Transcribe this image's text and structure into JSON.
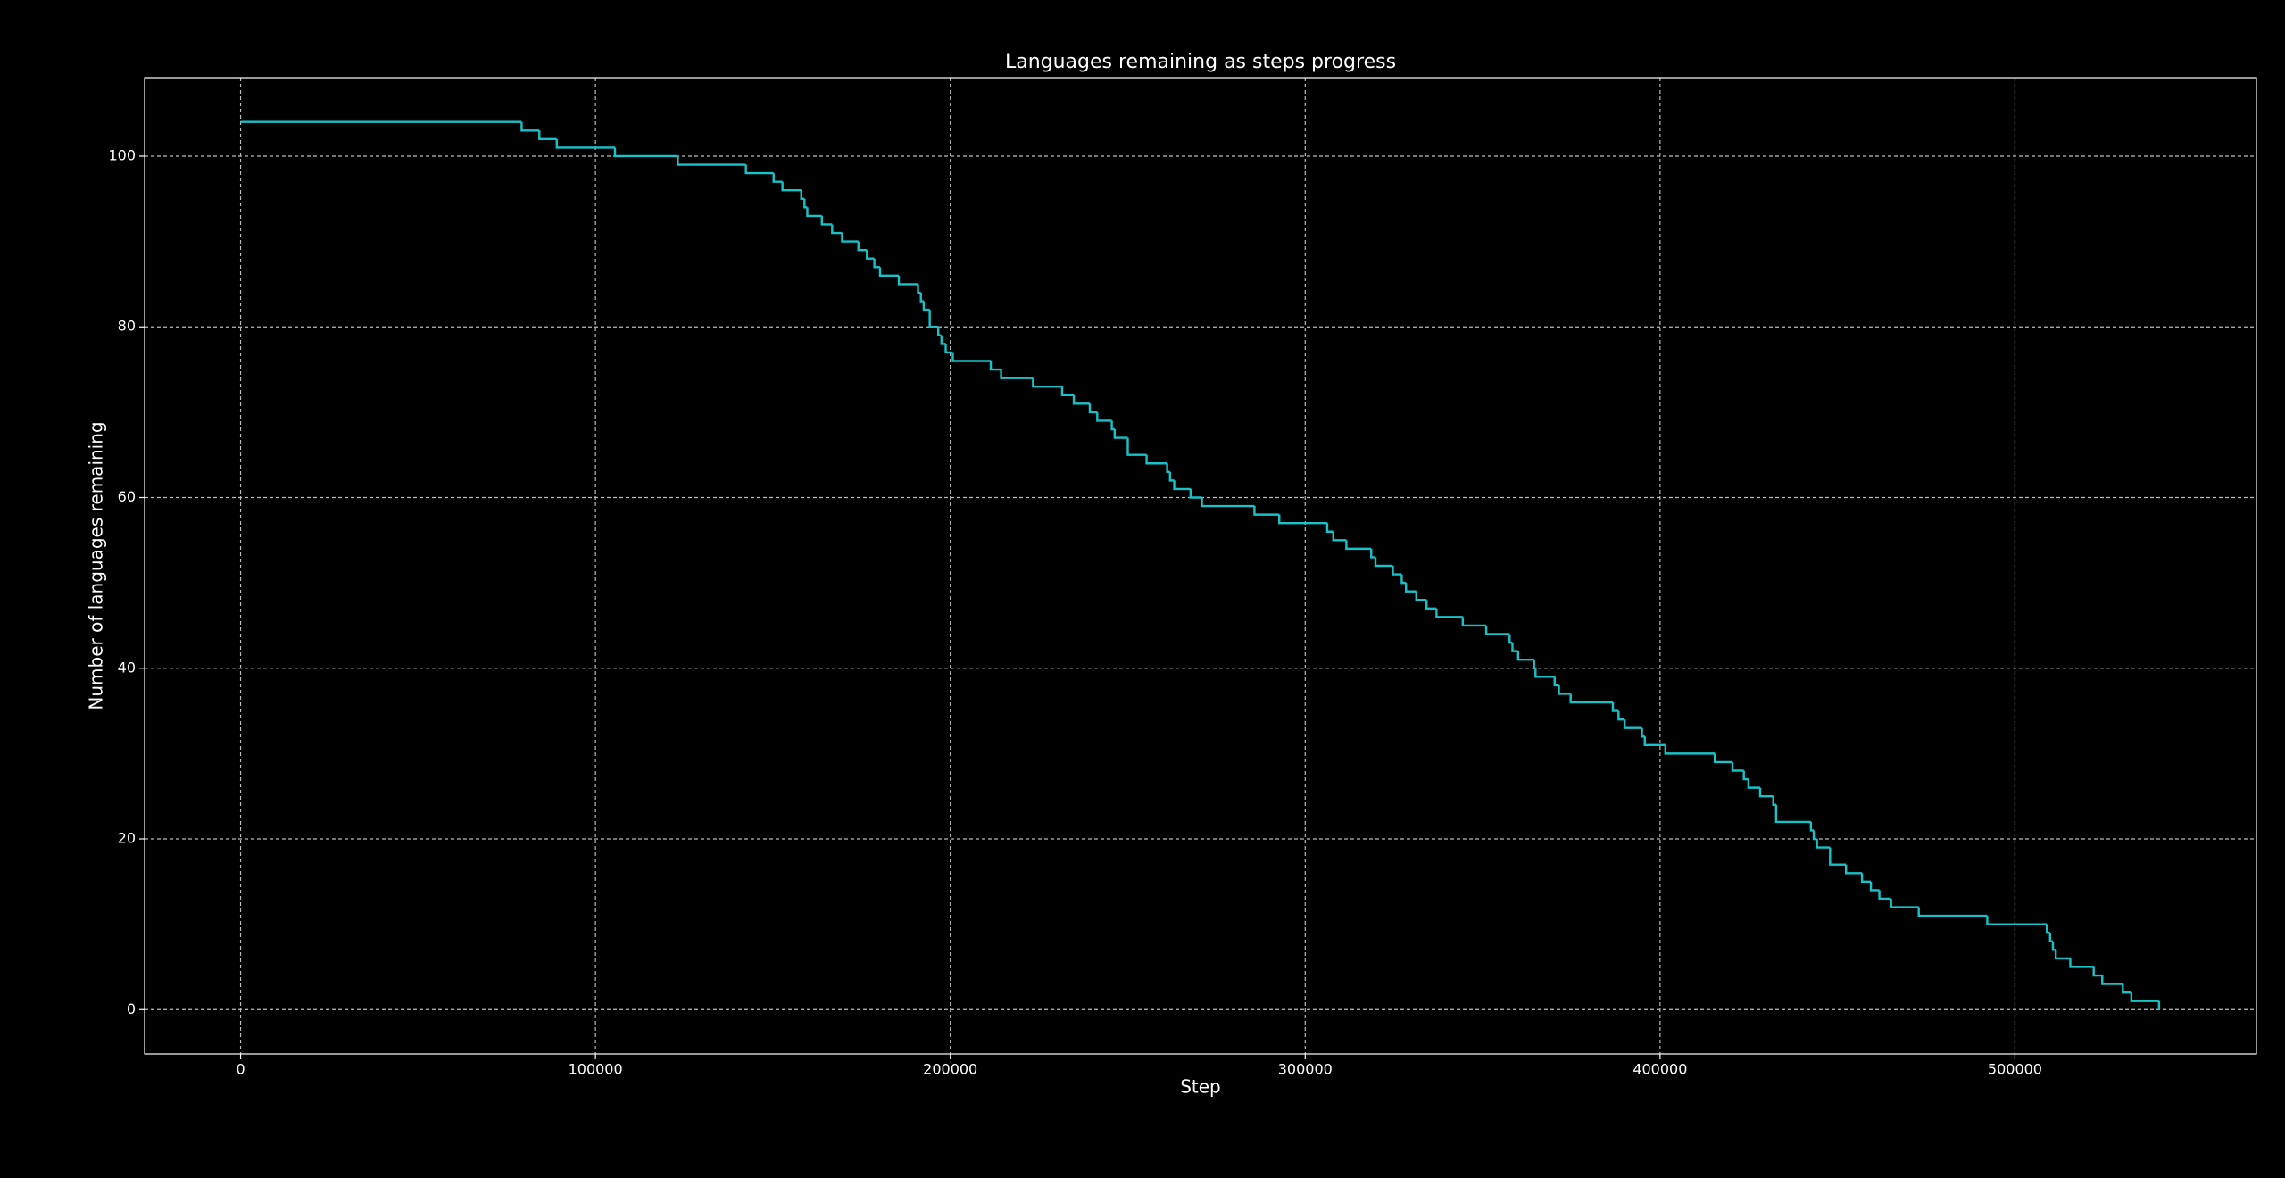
{
  "chart_data": {
    "type": "step",
    "title": "Languages remaining as steps progress",
    "x_label": "Step",
    "y_label": "Number of languages remaining",
    "xlim": [
      -27050,
      568050
    ],
    "ylim": [
      -5.2,
      109.2
    ],
    "xticks": [
      0,
      100000,
      200000,
      300000,
      400000,
      500000
    ],
    "yticks": [
      0,
      20,
      40,
      60,
      80,
      100
    ],
    "grid": true,
    "series": [
      {
        "color": "#17c3c9",
        "x": [
          0,
          79200,
          84200,
          89100,
          105500,
          123200,
          142400,
          150200,
          152700,
          158000,
          158900,
          159700,
          163800,
          166700,
          169500,
          174100,
          176500,
          178600,
          180200,
          185500,
          190900,
          191700,
          192500,
          194200,
          196600,
          197500,
          198700,
          200700,
          211400,
          214300,
          223300,
          231500,
          234800,
          239300,
          241400,
          245500,
          246300,
          250000,
          255300,
          261100,
          261900,
          263100,
          267700,
          270900,
          285700,
          292700,
          306200,
          307900,
          311600,
          318600,
          319800,
          324700,
          327200,
          328400,
          331300,
          334200,
          337000,
          344400,
          351000,
          357600,
          358400,
          360000,
          364500,
          364900,
          370300,
          371500,
          374800,
          386700,
          388300,
          390000,
          394900,
          395700,
          401500,
          415400,
          420400,
          423600,
          424900,
          428200,
          431900,
          432700,
          442500,
          443300,
          444200,
          447900,
          452400,
          456900,
          459400,
          461800,
          465100,
          472900,
          492200,
          509000,
          509900,
          510700,
          511500,
          515600,
          522200,
          524600,
          530400,
          532800,
          540600
        ],
        "values": [
          104,
          103,
          102,
          101,
          100,
          99,
          98,
          97,
          96,
          95,
          94,
          93,
          92,
          91,
          90,
          89,
          88,
          87,
          86,
          85,
          84,
          83,
          82,
          80,
          79,
          78,
          77,
          76,
          75,
          74,
          73,
          72,
          71,
          70,
          69,
          68,
          67,
          65,
          64,
          63,
          62,
          61,
          60,
          59,
          58,
          57,
          56,
          55,
          54,
          53,
          52,
          51,
          50,
          49,
          48,
          47,
          46,
          45,
          44,
          43,
          42,
          41,
          40,
          39,
          38,
          37,
          36,
          35,
          34,
          33,
          32,
          31,
          30,
          29,
          28,
          27,
          26,
          25,
          24,
          22,
          21,
          20,
          19,
          17,
          16,
          15,
          14,
          13,
          12,
          11,
          10,
          9,
          8,
          7,
          6,
          5,
          4,
          3,
          2,
          1,
          0
        ]
      }
    ]
  }
}
